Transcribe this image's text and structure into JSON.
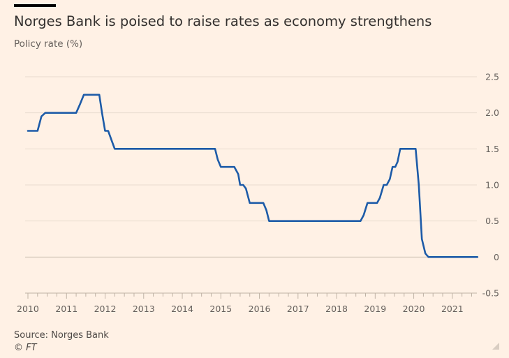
{
  "header": {
    "title": "Norges Bank is poised to raise rates as economy strengthens",
    "subtitle": "Policy rate (%)"
  },
  "footer": {
    "source": "Source: Norges Bank",
    "credit": "© FT"
  },
  "icons": {
    "corner": "resize-handle-icon"
  },
  "colors": {
    "background": "#fff1e5",
    "line": "#1d5ba8",
    "grid": "#e8dccf"
  },
  "chart_data": {
    "type": "line",
    "title": "Norges Bank is poised to raise rates as economy strengthens",
    "subtitle": "Policy rate (%)",
    "xlabel": "",
    "ylabel": "",
    "xlim": [
      2010,
      2021.75
    ],
    "ylim": [
      -0.5,
      2.5
    ],
    "x_ticks": [
      2010,
      2011,
      2012,
      2013,
      2014,
      2015,
      2016,
      2017,
      2018,
      2019,
      2020,
      2021
    ],
    "x_tick_labels": [
      "2010",
      "2011",
      "2012",
      "2013",
      "2014",
      "2015",
      "2016",
      "2017",
      "2018",
      "2019",
      "2020",
      "2021"
    ],
    "y_ticks": [
      2.5,
      2.0,
      1.5,
      1.0,
      0.5,
      0,
      -0.5
    ],
    "y_tick_labels": [
      "2.5",
      "2.0",
      "1.5",
      "1.0",
      "0.5",
      "0",
      "-0.5"
    ],
    "grid": true,
    "y_axis_position": "right",
    "series": [
      {
        "name": "",
        "x": [
          2010.0,
          2010.25,
          2010.35,
          2010.45,
          2011.25,
          2011.35,
          2011.45,
          2011.55,
          2011.65,
          2011.85,
          2011.92,
          2012.0,
          2012.08,
          2012.18,
          2012.25,
          2014.25,
          2014.85,
          2014.92,
          2015.0,
          2015.35,
          2015.45,
          2015.5,
          2015.58,
          2015.65,
          2015.75,
          2016.1,
          2016.18,
          2016.25,
          2018.0,
          2018.62,
          2018.7,
          2018.8,
          2019.05,
          2019.12,
          2019.22,
          2019.3,
          2019.38,
          2019.45,
          2019.52,
          2019.58,
          2019.65,
          2019.72,
          2019.8,
          2019.88,
          2020.05,
          2020.13,
          2020.21,
          2020.3,
          2020.38,
          2021.25,
          2021.65
        ],
        "y": [
          1.75,
          1.75,
          1.95,
          2.0,
          2.0,
          2.12,
          2.25,
          2.25,
          2.25,
          2.25,
          2.0,
          1.75,
          1.75,
          1.6,
          1.5,
          1.5,
          1.5,
          1.35,
          1.25,
          1.25,
          1.15,
          1.0,
          1.0,
          0.95,
          0.75,
          0.75,
          0.65,
          0.5,
          0.5,
          0.5,
          0.58,
          0.75,
          0.75,
          0.82,
          1.0,
          1.0,
          1.08,
          1.25,
          1.25,
          1.32,
          1.5,
          1.5,
          1.5,
          1.5,
          1.5,
          1.0,
          0.25,
          0.05,
          0,
          0,
          0
        ]
      }
    ]
  }
}
